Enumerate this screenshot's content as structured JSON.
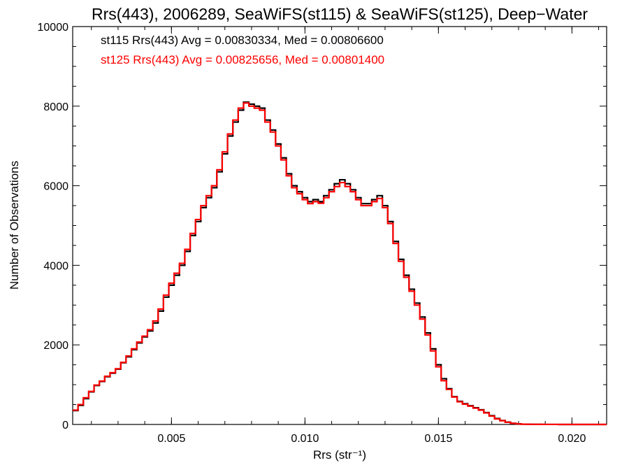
{
  "chart_data": {
    "type": "line",
    "title": "Rrs(443), 2006289, SeaWiFS(st115) & SeaWiFS(st125), Deep−Water",
    "xlabel": "Rrs (str⁻¹)",
    "ylabel": "Number of Observations",
    "xlim": [
      0.0013,
      0.0213
    ],
    "ylim": [
      0,
      10000
    ],
    "xticks": [
      "0.005",
      "0.010",
      "0.015",
      "0.020"
    ],
    "yticks": [
      "0",
      "2000",
      "4000",
      "6000",
      "8000",
      "10000"
    ],
    "annotations": [
      "st115 Rrs(443) Avg = 0.00830334, Med = 0.00806600",
      "st125 Rrs(443) Avg = 0.00825656, Med = 0.00801400"
    ],
    "series": [
      {
        "color": "#000000",
        "x": [
          0.0013,
          0.0015,
          0.0017,
          0.0019,
          0.0021,
          0.0023,
          0.0025,
          0.0027,
          0.0029,
          0.0031,
          0.0033,
          0.0035,
          0.0037,
          0.0039,
          0.0041,
          0.0043,
          0.0045,
          0.0047,
          0.0049,
          0.0051,
          0.0053,
          0.0055,
          0.0057,
          0.0059,
          0.0061,
          0.0063,
          0.0065,
          0.0067,
          0.0069,
          0.0071,
          0.0073,
          0.0075,
          0.0077,
          0.0079,
          0.0081,
          0.0083,
          0.0085,
          0.0087,
          0.0089,
          0.0091,
          0.0093,
          0.0095,
          0.0097,
          0.0099,
          0.0101,
          0.0103,
          0.0105,
          0.0107,
          0.0109,
          0.0111,
          0.0113,
          0.0115,
          0.0117,
          0.0119,
          0.0121,
          0.0123,
          0.0125,
          0.0127,
          0.0129,
          0.0131,
          0.0133,
          0.0135,
          0.0137,
          0.0139,
          0.0141,
          0.0143,
          0.0145,
          0.0147,
          0.0149,
          0.0151,
          0.0153,
          0.0155,
          0.0157,
          0.0159,
          0.0161,
          0.0163,
          0.0165,
          0.0167,
          0.0169,
          0.0171,
          0.0173,
          0.0175,
          0.0177,
          0.0179,
          0.0181,
          0.0183,
          0.0185,
          0.0187,
          0.0189,
          0.0191,
          0.0193,
          0.0195,
          0.0197,
          0.0199,
          0.0201,
          0.0203,
          0.0205,
          0.0207,
          0.0209,
          0.0211,
          0.0213
        ],
        "y": [
          350,
          480,
          650,
          820,
          980,
          1080,
          1200,
          1290,
          1390,
          1550,
          1700,
          1880,
          2050,
          2200,
          2350,
          2550,
          2850,
          3200,
          3500,
          3750,
          4000,
          4350,
          4750,
          5100,
          5450,
          5700,
          5950,
          6350,
          6800,
          7250,
          7600,
          7900,
          8100,
          8050,
          8000,
          7950,
          7650,
          7400,
          7050,
          6700,
          6300,
          6000,
          5850,
          5700,
          5600,
          5650,
          5600,
          5750,
          5900,
          6050,
          6150,
          6050,
          5900,
          5700,
          5550,
          5550,
          5650,
          5750,
          5500,
          5100,
          4600,
          4150,
          3750,
          3400,
          3050,
          2700,
          2300,
          1900,
          1500,
          1150,
          900,
          700,
          580,
          520,
          470,
          420,
          370,
          300,
          220,
          150,
          100,
          60,
          30,
          15,
          8,
          5,
          3,
          2,
          1,
          1,
          1,
          0,
          0,
          0,
          0,
          0,
          0,
          0,
          0,
          0,
          0
        ]
      },
      {
        "color": "#ff0000",
        "x": [
          0.0013,
          0.0015,
          0.0017,
          0.0019,
          0.0021,
          0.0023,
          0.0025,
          0.0027,
          0.0029,
          0.0031,
          0.0033,
          0.0035,
          0.0037,
          0.0039,
          0.0041,
          0.0043,
          0.0045,
          0.0047,
          0.0049,
          0.0051,
          0.0053,
          0.0055,
          0.0057,
          0.0059,
          0.0061,
          0.0063,
          0.0065,
          0.0067,
          0.0069,
          0.0071,
          0.0073,
          0.0075,
          0.0077,
          0.0079,
          0.0081,
          0.0083,
          0.0085,
          0.0087,
          0.0089,
          0.0091,
          0.0093,
          0.0095,
          0.0097,
          0.0099,
          0.0101,
          0.0103,
          0.0105,
          0.0107,
          0.0109,
          0.0111,
          0.0113,
          0.0115,
          0.0117,
          0.0119,
          0.0121,
          0.0123,
          0.0125,
          0.0127,
          0.0129,
          0.0131,
          0.0133,
          0.0135,
          0.0137,
          0.0139,
          0.0141,
          0.0143,
          0.0145,
          0.0147,
          0.0149,
          0.0151,
          0.0153,
          0.0155,
          0.0157,
          0.0159,
          0.0161,
          0.0163,
          0.0165,
          0.0167,
          0.0169,
          0.0171,
          0.0173,
          0.0175,
          0.0177,
          0.0179,
          0.0181,
          0.0183,
          0.0185,
          0.0187,
          0.0189,
          0.0191,
          0.0193,
          0.0195,
          0.0197,
          0.0199,
          0.0201,
          0.0203,
          0.0205,
          0.0207,
          0.0209,
          0.0211,
          0.0213
        ],
        "y": [
          360,
          500,
          670,
          830,
          990,
          1090,
          1210,
          1300,
          1400,
          1560,
          1720,
          1900,
          2070,
          2220,
          2380,
          2600,
          2900,
          3250,
          3550,
          3800,
          4050,
          4400,
          4800,
          5150,
          5500,
          5750,
          6000,
          6400,
          6850,
          7300,
          7650,
          7950,
          8080,
          8000,
          7950,
          7900,
          7600,
          7350,
          7000,
          6650,
          6250,
          5950,
          5800,
          5650,
          5550,
          5600,
          5560,
          5700,
          5850,
          5980,
          6080,
          5980,
          5850,
          5650,
          5500,
          5500,
          5600,
          5680,
          5450,
          5050,
          4550,
          4100,
          3700,
          3350,
          3000,
          2650,
          2250,
          1850,
          1450,
          1100,
          880,
          690,
          570,
          510,
          460,
          410,
          360,
          290,
          210,
          140,
          95,
          55,
          28,
          14,
          7,
          4,
          3,
          2,
          1,
          1,
          1,
          0,
          0,
          0,
          0,
          0,
          0,
          0,
          0,
          0,
          0
        ]
      }
    ]
  }
}
